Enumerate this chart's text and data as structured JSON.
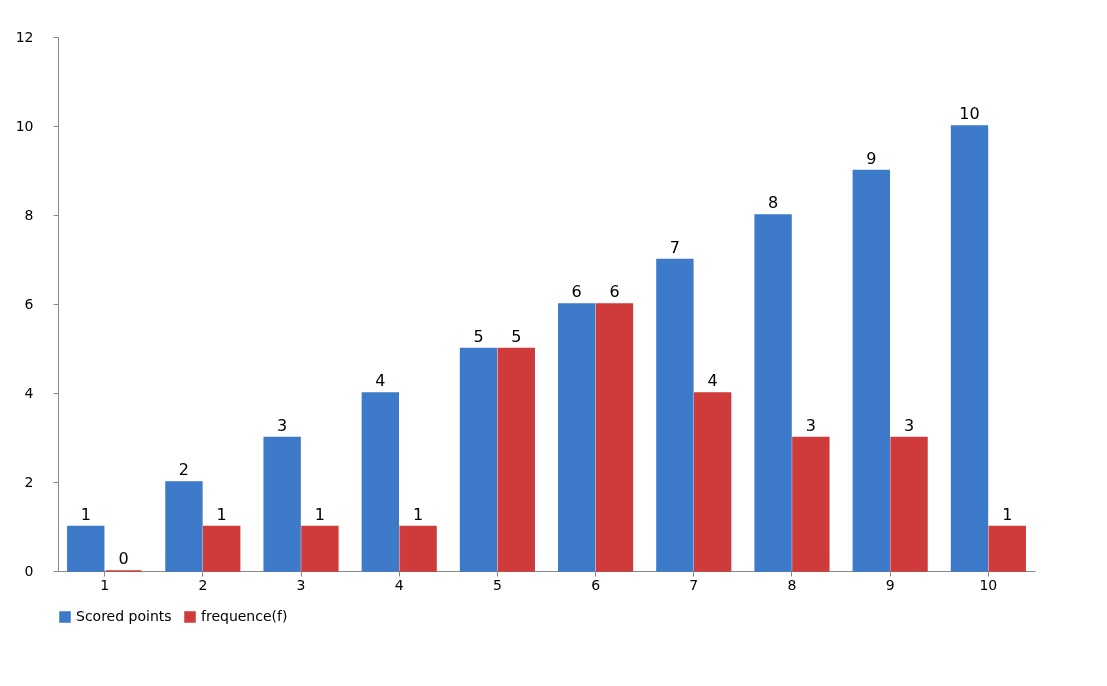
{
  "chart_data": {
    "type": "bar",
    "categories": [
      "1",
      "2",
      "3",
      "4",
      "5",
      "6",
      "7",
      "8",
      "9",
      "10"
    ],
    "series": [
      {
        "name": "Scored points",
        "color": "#3d7ac9",
        "values": [
          1,
          2,
          3,
          4,
          5,
          6,
          7,
          8,
          9,
          10
        ]
      },
      {
        "name": "frequence(f)",
        "color": "#cf3b3b",
        "values": [
          0,
          1,
          1,
          1,
          5,
          6,
          4,
          3,
          3,
          1
        ]
      }
    ],
    "ylim": [
      0,
      12
    ],
    "yticks": [
      0,
      2,
      4,
      6,
      8,
      10,
      12
    ],
    "grid": false,
    "legend": "bottom",
    "data_labels": true
  }
}
